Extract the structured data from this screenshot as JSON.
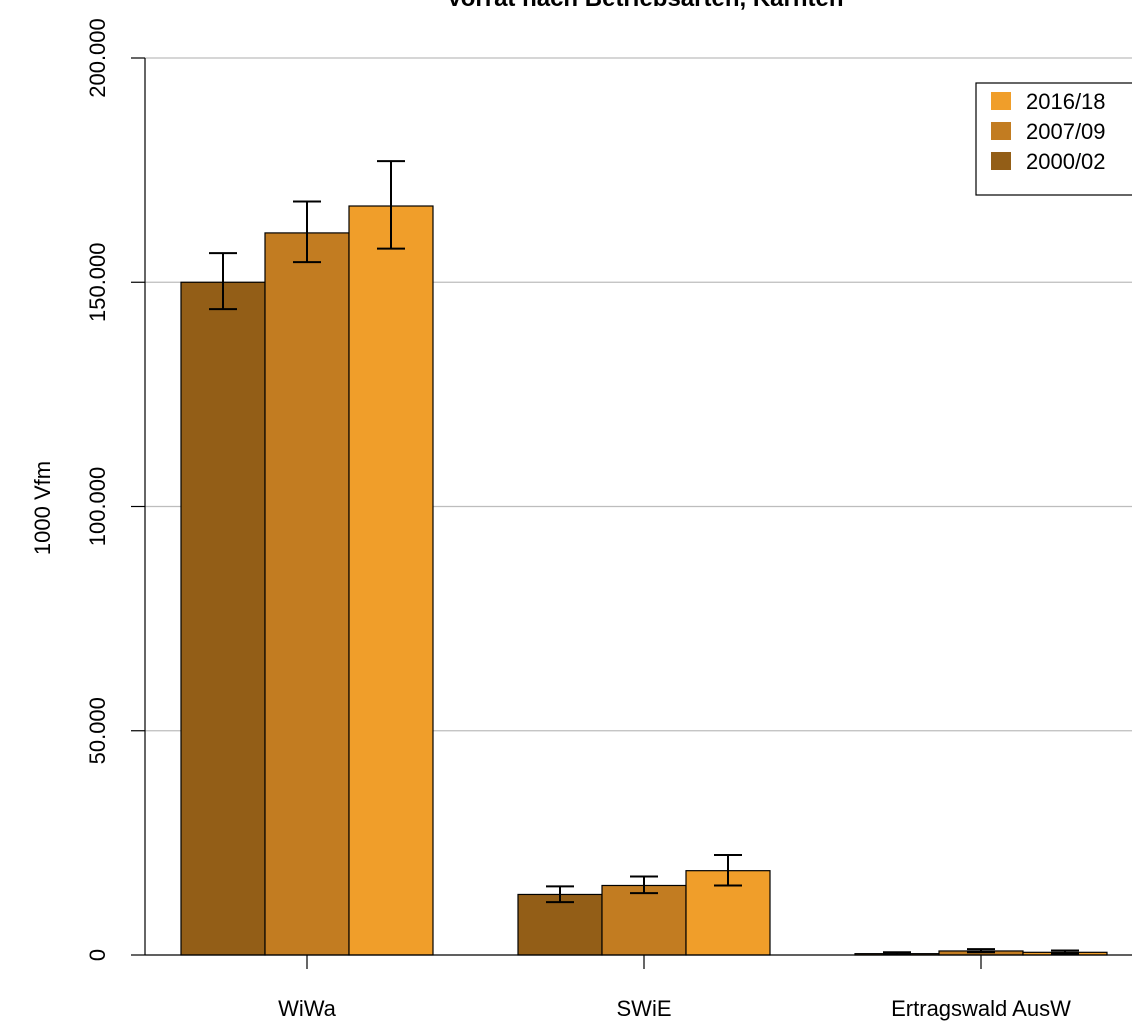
{
  "chart_data": {
    "type": "bar",
    "title": "Vorrat nach Betriebsarten, Kärnten",
    "xlabel": "",
    "ylabel": "1000 Vfm",
    "ylim": [
      0,
      200000
    ],
    "yticks": [
      0,
      50000,
      100000,
      150000,
      200000
    ],
    "ytick_labels": [
      "0",
      "50.000",
      "100.000",
      "150.000",
      "200.000"
    ],
    "categories": [
      "WiWa",
      "SWiE",
      "Ertragswald AusW"
    ],
    "grid": true,
    "legend_position": "top-right",
    "series": [
      {
        "name": "2000/02",
        "color": "#935E17",
        "values": [
          150000,
          13500,
          300
        ],
        "err_low": [
          144000,
          11800,
          150
        ],
        "err_high": [
          156500,
          15300,
          600
        ]
      },
      {
        "name": "2007/09",
        "color": "#C27C21",
        "values": [
          161000,
          15500,
          900
        ],
        "err_low": [
          154500,
          13800,
          600
        ],
        "err_high": [
          168000,
          17500,
          1300
        ]
      },
      {
        "name": "2016/18",
        "color": "#F09E2A",
        "values": [
          167000,
          18800,
          600
        ],
        "err_low": [
          157500,
          15500,
          300
        ],
        "err_high": [
          177000,
          22300,
          1000
        ]
      }
    ]
  }
}
